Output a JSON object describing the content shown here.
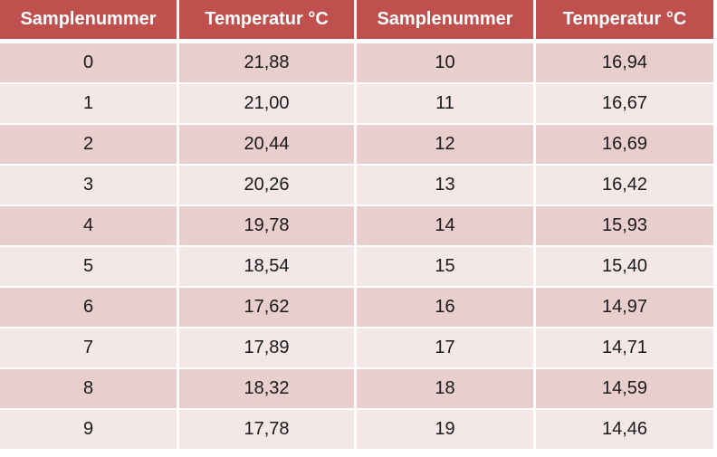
{
  "table": {
    "headers": [
      "Samplenummer",
      "Temperatur °C",
      "Samplenummer",
      "Temperatur °C"
    ],
    "rows": [
      [
        "0",
        "21,88",
        "10",
        "16,94"
      ],
      [
        "1",
        "21,00",
        "11",
        "16,67"
      ],
      [
        "2",
        "20,44",
        "12",
        "16,69"
      ],
      [
        "3",
        "20,26",
        "13",
        "16,42"
      ],
      [
        "4",
        "19,78",
        "14",
        "15,93"
      ],
      [
        "5",
        "18,54",
        "15",
        "15,40"
      ],
      [
        "6",
        "17,62",
        "16",
        "14,97"
      ],
      [
        "7",
        "17,89",
        "17",
        "14,71"
      ],
      [
        "8",
        "18,32",
        "18",
        "14,59"
      ],
      [
        "9",
        "17,78",
        "19",
        "14,46"
      ]
    ]
  },
  "colors": {
    "header_bg": "#c0504d",
    "row_dark": "#e8cecd",
    "row_light": "#f4e7e7"
  }
}
